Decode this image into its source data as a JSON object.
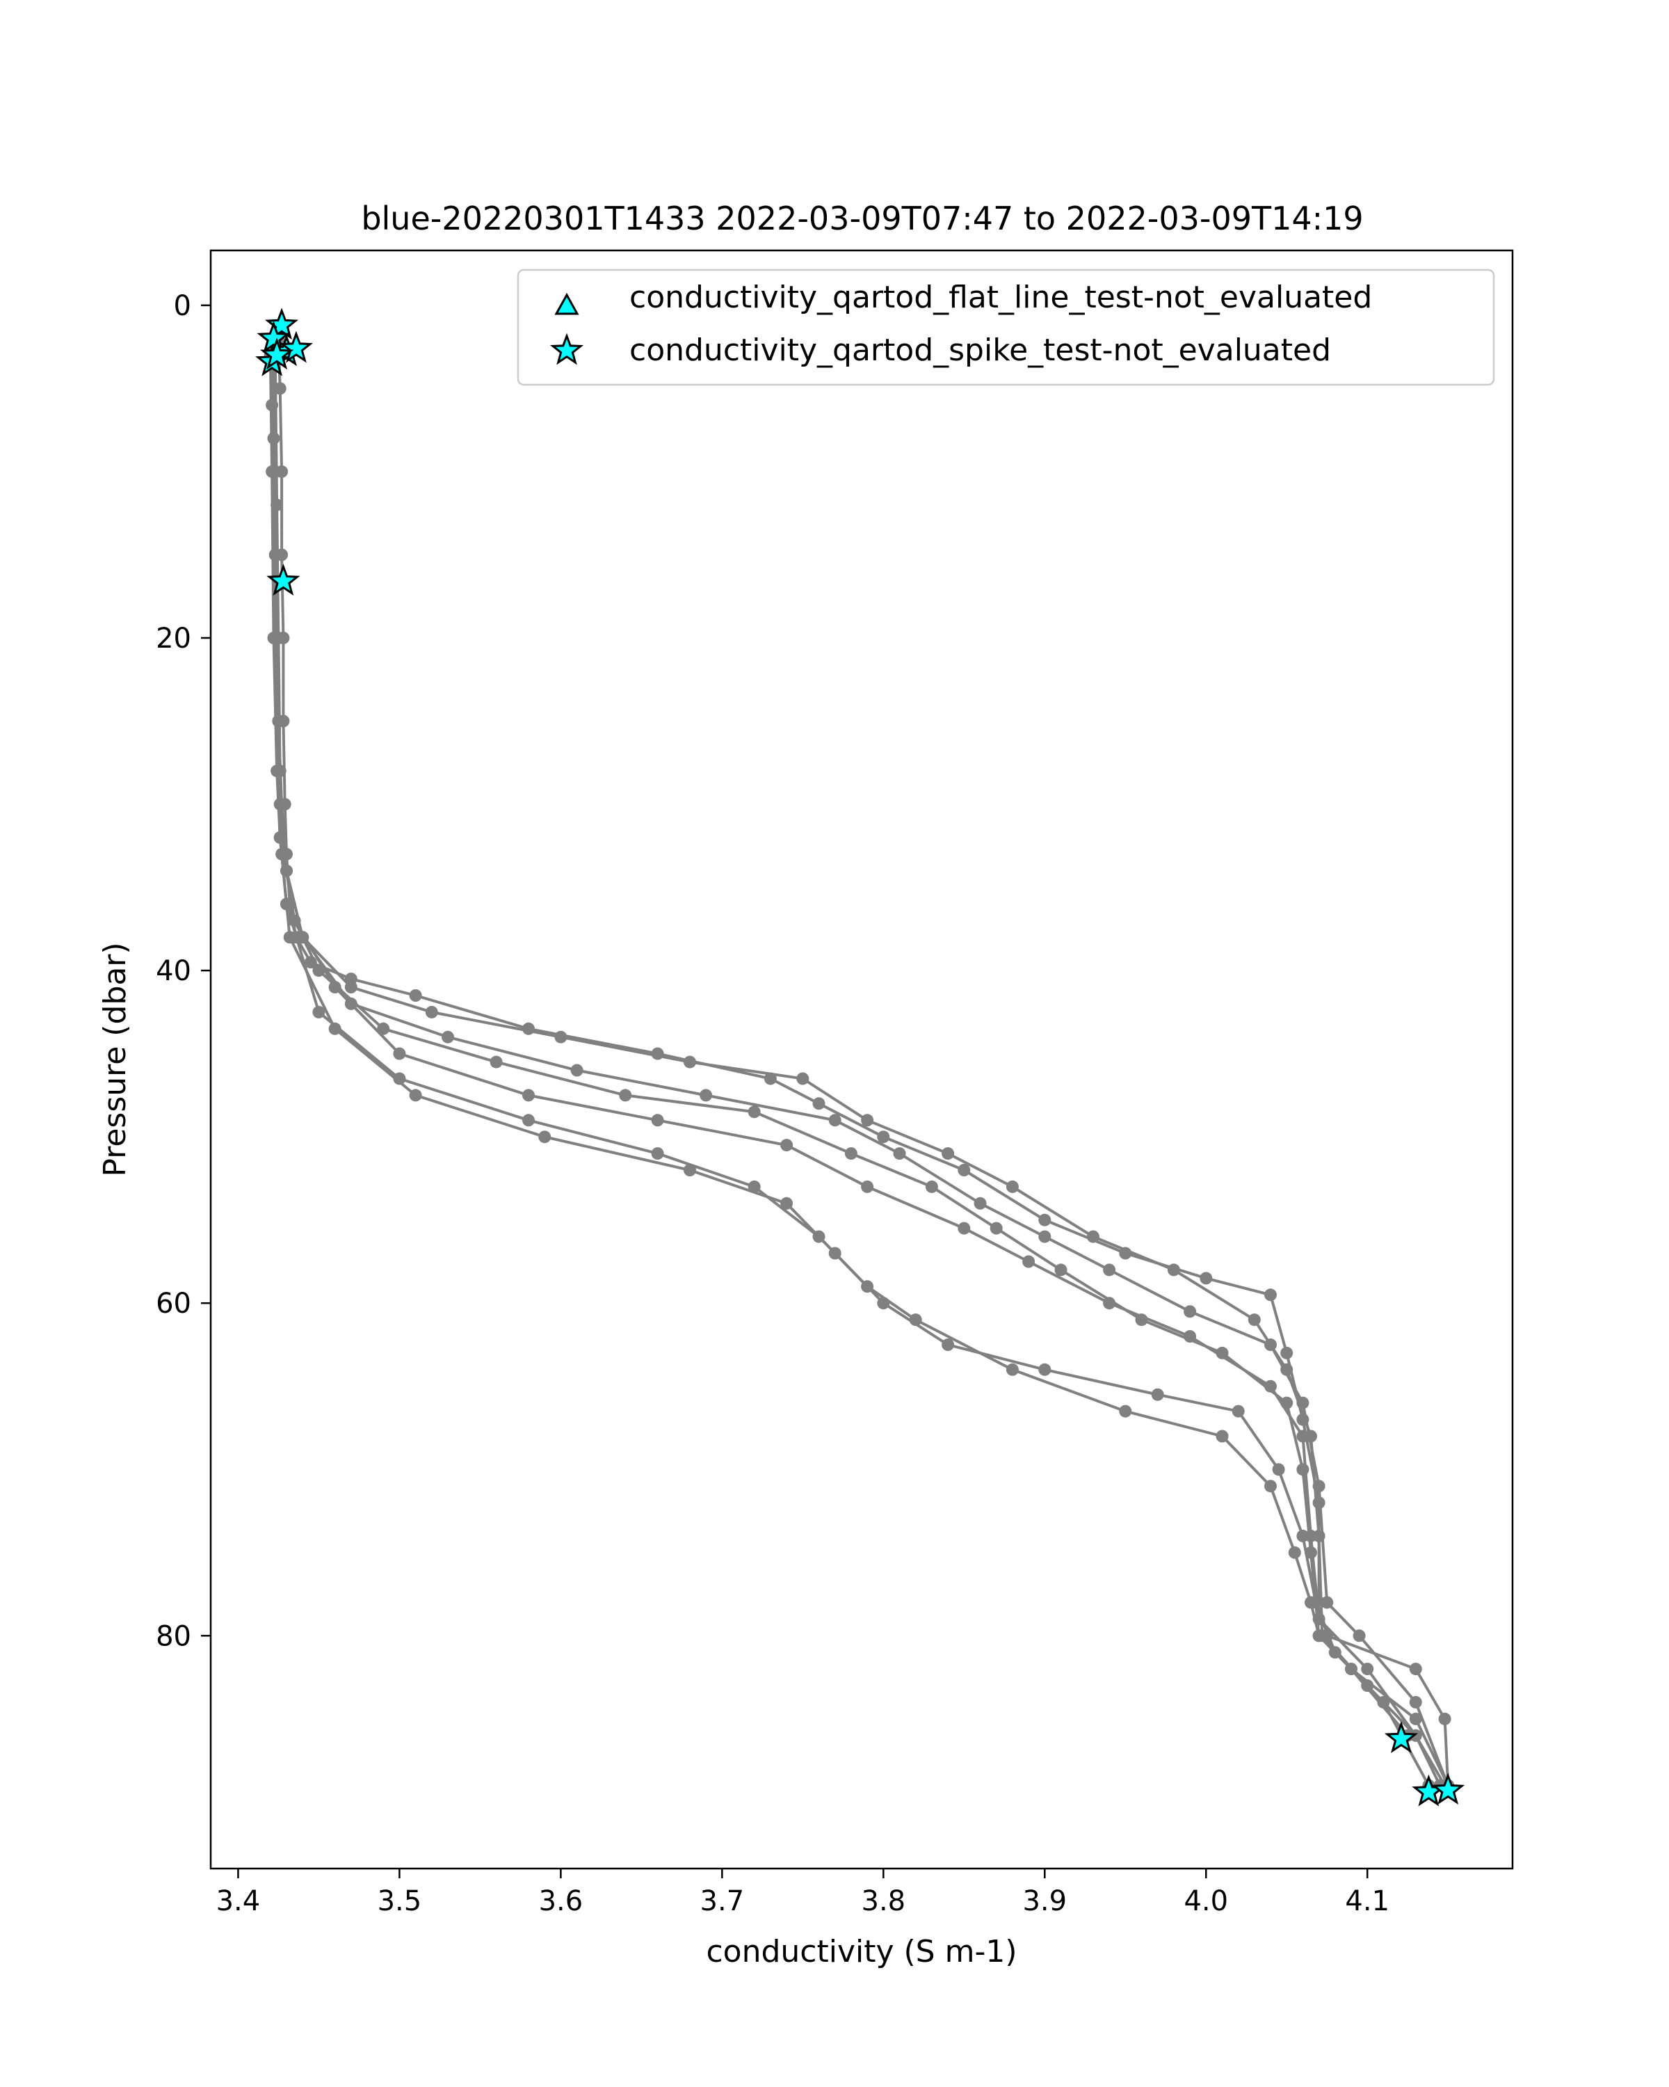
{
  "chart_data": {
    "type": "scatter",
    "title": "blue-20220301T1433 2022-03-09T07:47 to 2022-03-09T14:19",
    "xlabel": "conductivity (S m-1)",
    "ylabel": "Pressure (dbar)",
    "xlim": [
      3.383,
      4.19
    ],
    "ylim": [
      94,
      -3.3
    ],
    "x_ticks": [
      "3.4",
      "3.5",
      "3.6",
      "3.7",
      "3.8",
      "3.9",
      "4.0",
      "4.1"
    ],
    "y_ticks": [
      "0",
      "20",
      "40",
      "60",
      "80"
    ],
    "grid": false,
    "legend_position": "top-right",
    "colors": {
      "profile": "#808080",
      "flag_marker": "#00ffff",
      "marker_edge": "#000000"
    },
    "legend": [
      {
        "label": "conductivity_qartod_flat_line_test-not_evaluated",
        "marker": "triangle"
      },
      {
        "label": "conductivity_qartod_spike_test-not_evaluated",
        "marker": "star"
      }
    ],
    "series": [
      {
        "x": [
          3.425,
          3.426,
          3.427,
          3.427,
          3.428,
          3.428,
          3.429,
          3.43,
          3.432,
          3.436,
          3.445,
          3.47,
          3.51,
          3.58,
          3.66,
          3.73,
          3.76,
          3.8,
          3.85,
          3.9,
          3.95,
          4.0,
          4.04,
          4.05,
          4.06,
          4.07,
          4.07,
          4.075,
          4.13,
          4.148,
          4.15
        ],
        "y": [
          2,
          5,
          10,
          15,
          20,
          25,
          30,
          33,
          36,
          38,
          39.5,
          40.5,
          41.5,
          43.5,
          45,
          46.5,
          48,
          50,
          52,
          55,
          57,
          58.5,
          59.5,
          63,
          67,
          72,
          78,
          80,
          82,
          85,
          89
        ]
      },
      {
        "x": [
          3.42,
          3.421,
          3.422,
          3.423,
          3.424,
          3.425,
          3.427,
          3.43,
          3.44,
          3.47,
          3.52,
          3.6,
          3.68,
          3.75,
          3.79,
          3.84,
          3.88,
          3.93,
          3.98,
          4.03,
          4.05,
          4.065,
          4.07,
          4.072,
          4.1,
          4.13,
          4.145
        ],
        "y": [
          3,
          6,
          10,
          15,
          20,
          25,
          30,
          34,
          38,
          41,
          42.5,
          44,
          45.5,
          46.5,
          49,
          51,
          53,
          56,
          58,
          61,
          64,
          68,
          74,
          80,
          83,
          86,
          89
        ]
      },
      {
        "x": [
          3.421,
          3.422,
          3.423,
          3.424,
          3.425,
          3.426,
          3.43,
          3.44,
          3.47,
          3.53,
          3.61,
          3.69,
          3.77,
          3.81,
          3.86,
          3.9,
          3.94,
          3.99,
          4.04,
          4.06,
          4.07,
          4.075,
          4.095,
          4.13,
          4.15
        ],
        "y": [
          3,
          8,
          15,
          20,
          25,
          30,
          34,
          38,
          42,
          44,
          46,
          47.5,
          49,
          51,
          54,
          56,
          58,
          60.5,
          62.5,
          66,
          71,
          78,
          80,
          84,
          89
        ]
      },
      {
        "x": [
          3.422,
          3.423,
          3.424,
          3.425,
          3.426,
          3.43,
          3.45,
          3.49,
          3.56,
          3.64,
          3.72,
          3.78,
          3.83,
          3.87,
          3.91,
          3.96,
          4.01,
          4.05,
          4.06,
          4.065,
          4.07,
          4.09,
          4.13,
          4.15
        ],
        "y": [
          3,
          10,
          20,
          28,
          32,
          36,
          40,
          43.5,
          45.5,
          47.5,
          48.5,
          51,
          53,
          55.5,
          58,
          61,
          63,
          66,
          70,
          75,
          80,
          82,
          85,
          89
        ]
      },
      {
        "x": [
          3.423,
          3.424,
          3.425,
          3.426,
          3.428,
          3.435,
          3.46,
          3.5,
          3.58,
          3.66,
          3.74,
          3.79,
          3.85,
          3.89,
          3.94,
          3.99,
          4.04,
          4.06,
          4.065,
          4.07,
          4.1,
          4.13,
          4.148
        ],
        "y": [
          3,
          12,
          20,
          28,
          33,
          37,
          41,
          45,
          47.5,
          49,
          50.5,
          53,
          55.5,
          57.5,
          60,
          62,
          65,
          68,
          74,
          79,
          82,
          86,
          89
        ]
      },
      {
        "x": [
          3.42,
          3.421,
          3.422,
          3.424,
          3.426,
          3.43,
          3.45,
          3.5,
          3.58,
          3.66,
          3.72,
          3.76,
          3.79,
          3.82,
          3.88,
          3.95,
          4.01,
          4.04,
          4.055,
          4.065,
          4.07,
          4.09,
          4.125
        ],
        "y": [
          3,
          10,
          20,
          28,
          32,
          36,
          42.5,
          46.5,
          49,
          51,
          53,
          56,
          59,
          61,
          64,
          66.5,
          68,
          71,
          75,
          78,
          80,
          82,
          86
        ]
      },
      {
        "x": [
          3.421,
          3.422,
          3.423,
          3.425,
          3.427,
          3.432,
          3.46,
          3.51,
          3.59,
          3.68,
          3.74,
          3.77,
          3.8,
          3.84,
          3.9,
          3.97,
          4.02,
          4.045,
          4.06,
          4.068,
          4.08,
          4.11,
          4.138
        ],
        "y": [
          3,
          10,
          20,
          28,
          33,
          38,
          43.5,
          47.5,
          50,
          52,
          54,
          57,
          60,
          62.5,
          64,
          65.5,
          66.5,
          70,
          74,
          78,
          81,
          84,
          89
        ]
      }
    ],
    "flag_points": {
      "flat_line": {
        "x": [],
        "y": []
      },
      "spike": {
        "x": [
          3.427,
          3.422,
          3.43,
          3.436,
          3.421,
          3.424,
          3.428,
          4.121,
          4.138,
          4.15
        ],
        "y": [
          1.2,
          2.0,
          2.8,
          2.6,
          3.4,
          3.0,
          16.6,
          86.2,
          89.4,
          89.3
        ]
      }
    }
  }
}
